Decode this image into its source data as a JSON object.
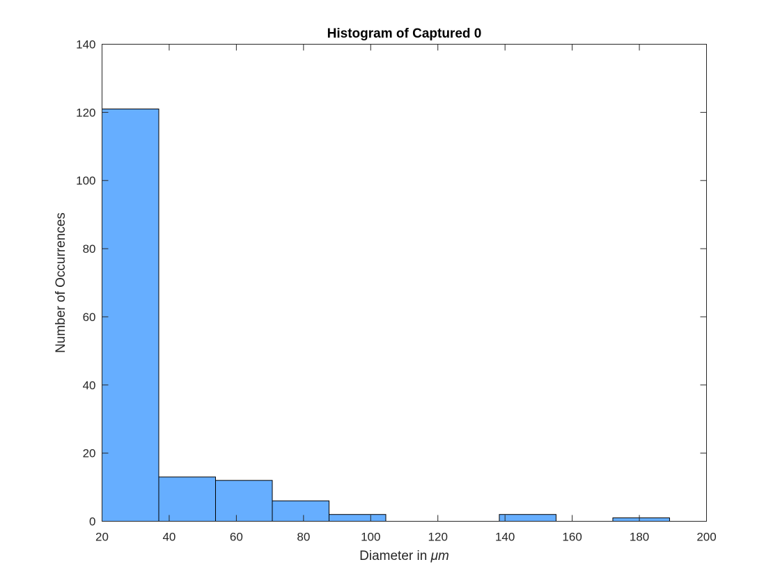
{
  "chart_data": {
    "type": "bar",
    "subtype": "histogram",
    "title": "Histogram of Captured 0",
    "xlabel_prefix": "Diameter in ",
    "xlabel_unit": "μm",
    "ylabel": "Number of Occurrences",
    "xlim": [
      20,
      200
    ],
    "ylim": [
      0,
      140
    ],
    "xticks": [
      20,
      40,
      60,
      80,
      100,
      120,
      140,
      160,
      180,
      200
    ],
    "yticks": [
      0,
      20,
      40,
      60,
      80,
      100,
      120,
      140
    ],
    "bin_edges": [
      20,
      36.9,
      53.8,
      70.7,
      87.6,
      104.5,
      121.4,
      138.3,
      155.2,
      172.1,
      189
    ],
    "counts": [
      121,
      13,
      12,
      6,
      2,
      0,
      0,
      2,
      0,
      1
    ],
    "bar_color": "#66aeff",
    "edge_color": "#000000",
    "grid": false,
    "legend": "none"
  }
}
